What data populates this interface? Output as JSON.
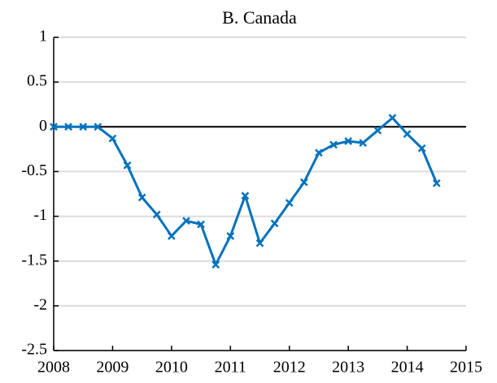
{
  "chart_data": {
    "type": "line",
    "title": "B. Canada",
    "x": [
      2008,
      2008.25,
      2008.5,
      2008.75,
      2009,
      2009.25,
      2009.5,
      2009.75,
      2010,
      2010.25,
      2010.5,
      2010.75,
      2011,
      2011.25,
      2011.5,
      2011.75,
      2012,
      2012.25,
      2012.5,
      2012.75,
      2013,
      2013.25,
      2013.5,
      2013.75,
      2014,
      2014.25,
      2014.5
    ],
    "series": [
      {
        "color": "#0072bd",
        "values": [
          0,
          0,
          0,
          0,
          -0.13,
          -0.43,
          -0.79,
          -0.98,
          -1.22,
          -1.05,
          -1.09,
          -1.54,
          -1.22,
          -0.77,
          -1.3,
          -1.08,
          -0.85,
          -0.62,
          -0.29,
          -0.2,
          -0.16,
          -0.18,
          -0.04,
          0.1,
          -0.08,
          -0.24,
          -0.63
        ]
      }
    ],
    "xlim": [
      2008,
      2015
    ],
    "xticks": [
      2008,
      2009,
      2010,
      2011,
      2012,
      2013,
      2014,
      2015
    ],
    "ylim": [
      -2.5,
      1
    ],
    "yticks": [
      -2.5,
      -2,
      -1.5,
      -1,
      -0.5,
      0,
      0.5,
      1
    ],
    "grid": true,
    "hline": 0
  }
}
